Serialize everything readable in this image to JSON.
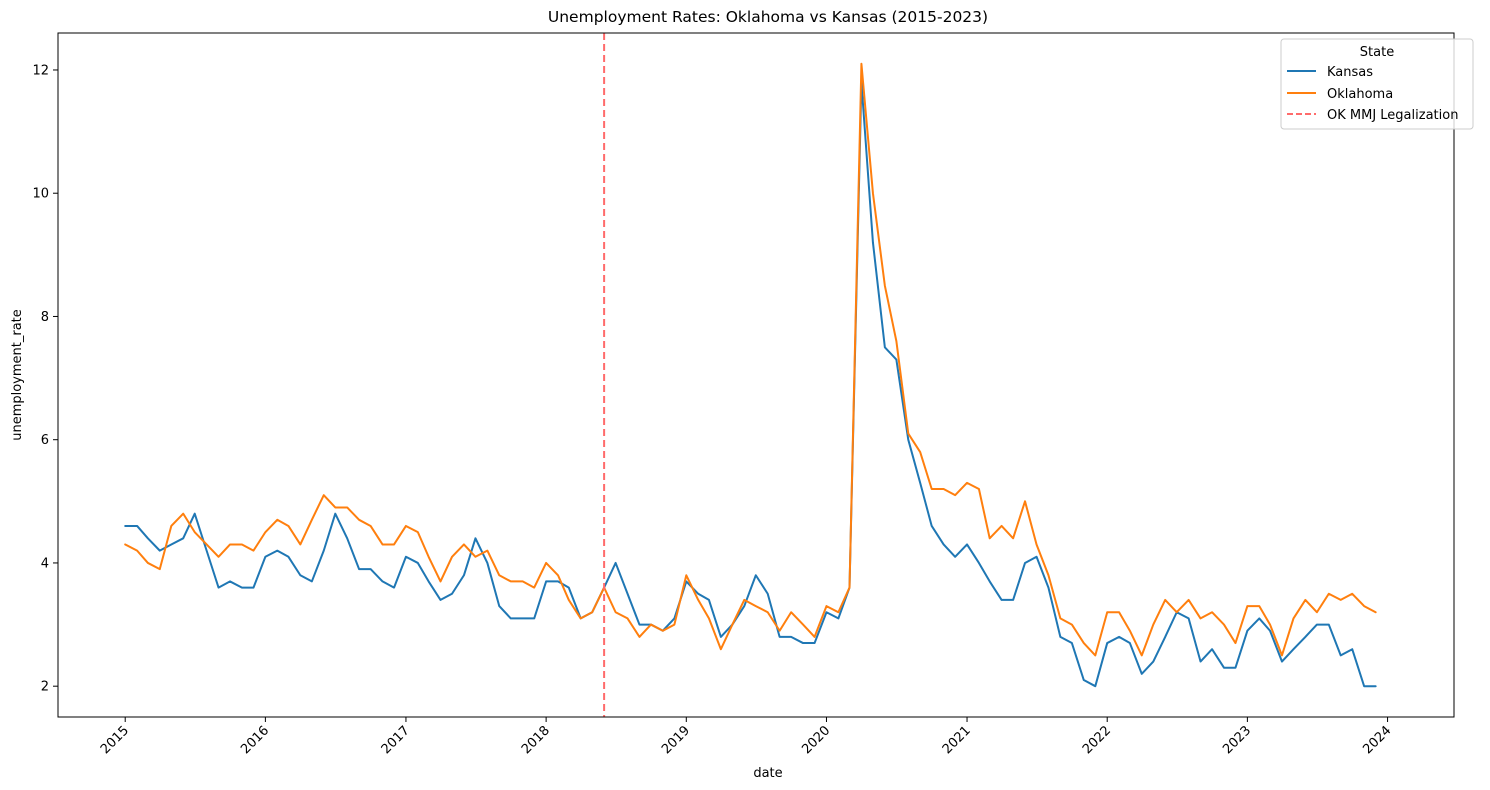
{
  "chart_data": {
    "type": "line",
    "title": "Unemployment Rates: Oklahoma vs Kansas (2015-2023)",
    "xlabel": "date",
    "ylabel": "unemployment_rate",
    "x_ticks": [
      "2015",
      "2016",
      "2017",
      "2018",
      "2019",
      "2020",
      "2021",
      "2022",
      "2023",
      "2024"
    ],
    "y_ticks": [
      2,
      4,
      6,
      8,
      10,
      12
    ],
    "xlim": [
      "2014-07-10",
      "2024-06-22"
    ],
    "ylim": [
      1.5,
      12.6
    ],
    "grid": false,
    "legend": {
      "title": "State",
      "placement": "top-right",
      "entries": [
        "Kansas",
        "Oklahoma",
        "OK MMJ Legalization"
      ]
    },
    "start_date": "2015-01",
    "frequency": "monthly",
    "series": [
      {
        "name": "Kansas",
        "color": "#1f77b4",
        "values": [
          4.6,
          4.6,
          4.4,
          4.2,
          4.3,
          4.4,
          4.8,
          4.2,
          3.6,
          3.7,
          3.6,
          3.6,
          4.1,
          4.2,
          4.1,
          3.8,
          3.7,
          4.2,
          4.8,
          4.4,
          3.9,
          3.9,
          3.7,
          3.6,
          4.1,
          4.0,
          3.7,
          3.4,
          3.5,
          3.8,
          4.4,
          4.0,
          3.3,
          3.1,
          3.1,
          3.1,
          3.7,
          3.7,
          3.6,
          3.1,
          3.2,
          3.6,
          4.0,
          3.5,
          3.0,
          3.0,
          2.9,
          3.1,
          3.7,
          3.5,
          3.4,
          2.8,
          3.0,
          3.3,
          3.8,
          3.5,
          2.8,
          2.8,
          2.7,
          2.7,
          3.2,
          3.1,
          3.6,
          11.8,
          9.2,
          7.5,
          7.3,
          6.0,
          5.3,
          4.6,
          4.3,
          4.1,
          4.3,
          4.0,
          3.7,
          3.4,
          3.4,
          4.0,
          4.1,
          3.6,
          2.8,
          2.7,
          2.1,
          2.0,
          2.7,
          2.8,
          2.7,
          2.2,
          2.4,
          2.8,
          3.2,
          3.1,
          2.4,
          2.6,
          2.3,
          2.3,
          2.9,
          3.1,
          2.9,
          2.4,
          2.6,
          2.8,
          3.0,
          3.0,
          2.5,
          2.6,
          2.0,
          2.0
        ]
      },
      {
        "name": "Oklahoma",
        "color": "#ff7f0e",
        "values": [
          4.3,
          4.2,
          4.0,
          3.9,
          4.6,
          4.8,
          4.5,
          4.3,
          4.1,
          4.3,
          4.3,
          4.2,
          4.5,
          4.7,
          4.6,
          4.3,
          4.7,
          5.1,
          4.9,
          4.9,
          4.7,
          4.6,
          4.3,
          4.3,
          4.6,
          4.5,
          4.1,
          3.7,
          4.1,
          4.3,
          4.1,
          4.2,
          3.8,
          3.7,
          3.7,
          3.6,
          4.0,
          3.8,
          3.4,
          3.1,
          3.2,
          3.6,
          3.2,
          3.1,
          2.8,
          3.0,
          2.9,
          3.0,
          3.8,
          3.4,
          3.1,
          2.6,
          3.0,
          3.4,
          3.3,
          3.2,
          2.9,
          3.2,
          3.0,
          2.8,
          3.3,
          3.2,
          3.6,
          12.1,
          10.0,
          8.5,
          7.6,
          6.1,
          5.8,
          5.2,
          5.2,
          5.1,
          5.3,
          5.2,
          4.4,
          4.6,
          4.4,
          5.0,
          4.3,
          3.8,
          3.1,
          3.0,
          2.7,
          2.5,
          3.2,
          3.2,
          2.9,
          2.5,
          3.0,
          3.4,
          3.2,
          3.4,
          3.1,
          3.2,
          3.0,
          2.7,
          3.3,
          3.3,
          3.0,
          2.5,
          3.1,
          3.4,
          3.2,
          3.5,
          3.4,
          3.5,
          3.3,
          3.2
        ]
      }
    ],
    "annotations": [
      {
        "label": "OK MMJ Legalization",
        "type": "vertical-line",
        "x": "2018-06",
        "color": "#ff6b6b",
        "style": "dashed"
      }
    ]
  }
}
